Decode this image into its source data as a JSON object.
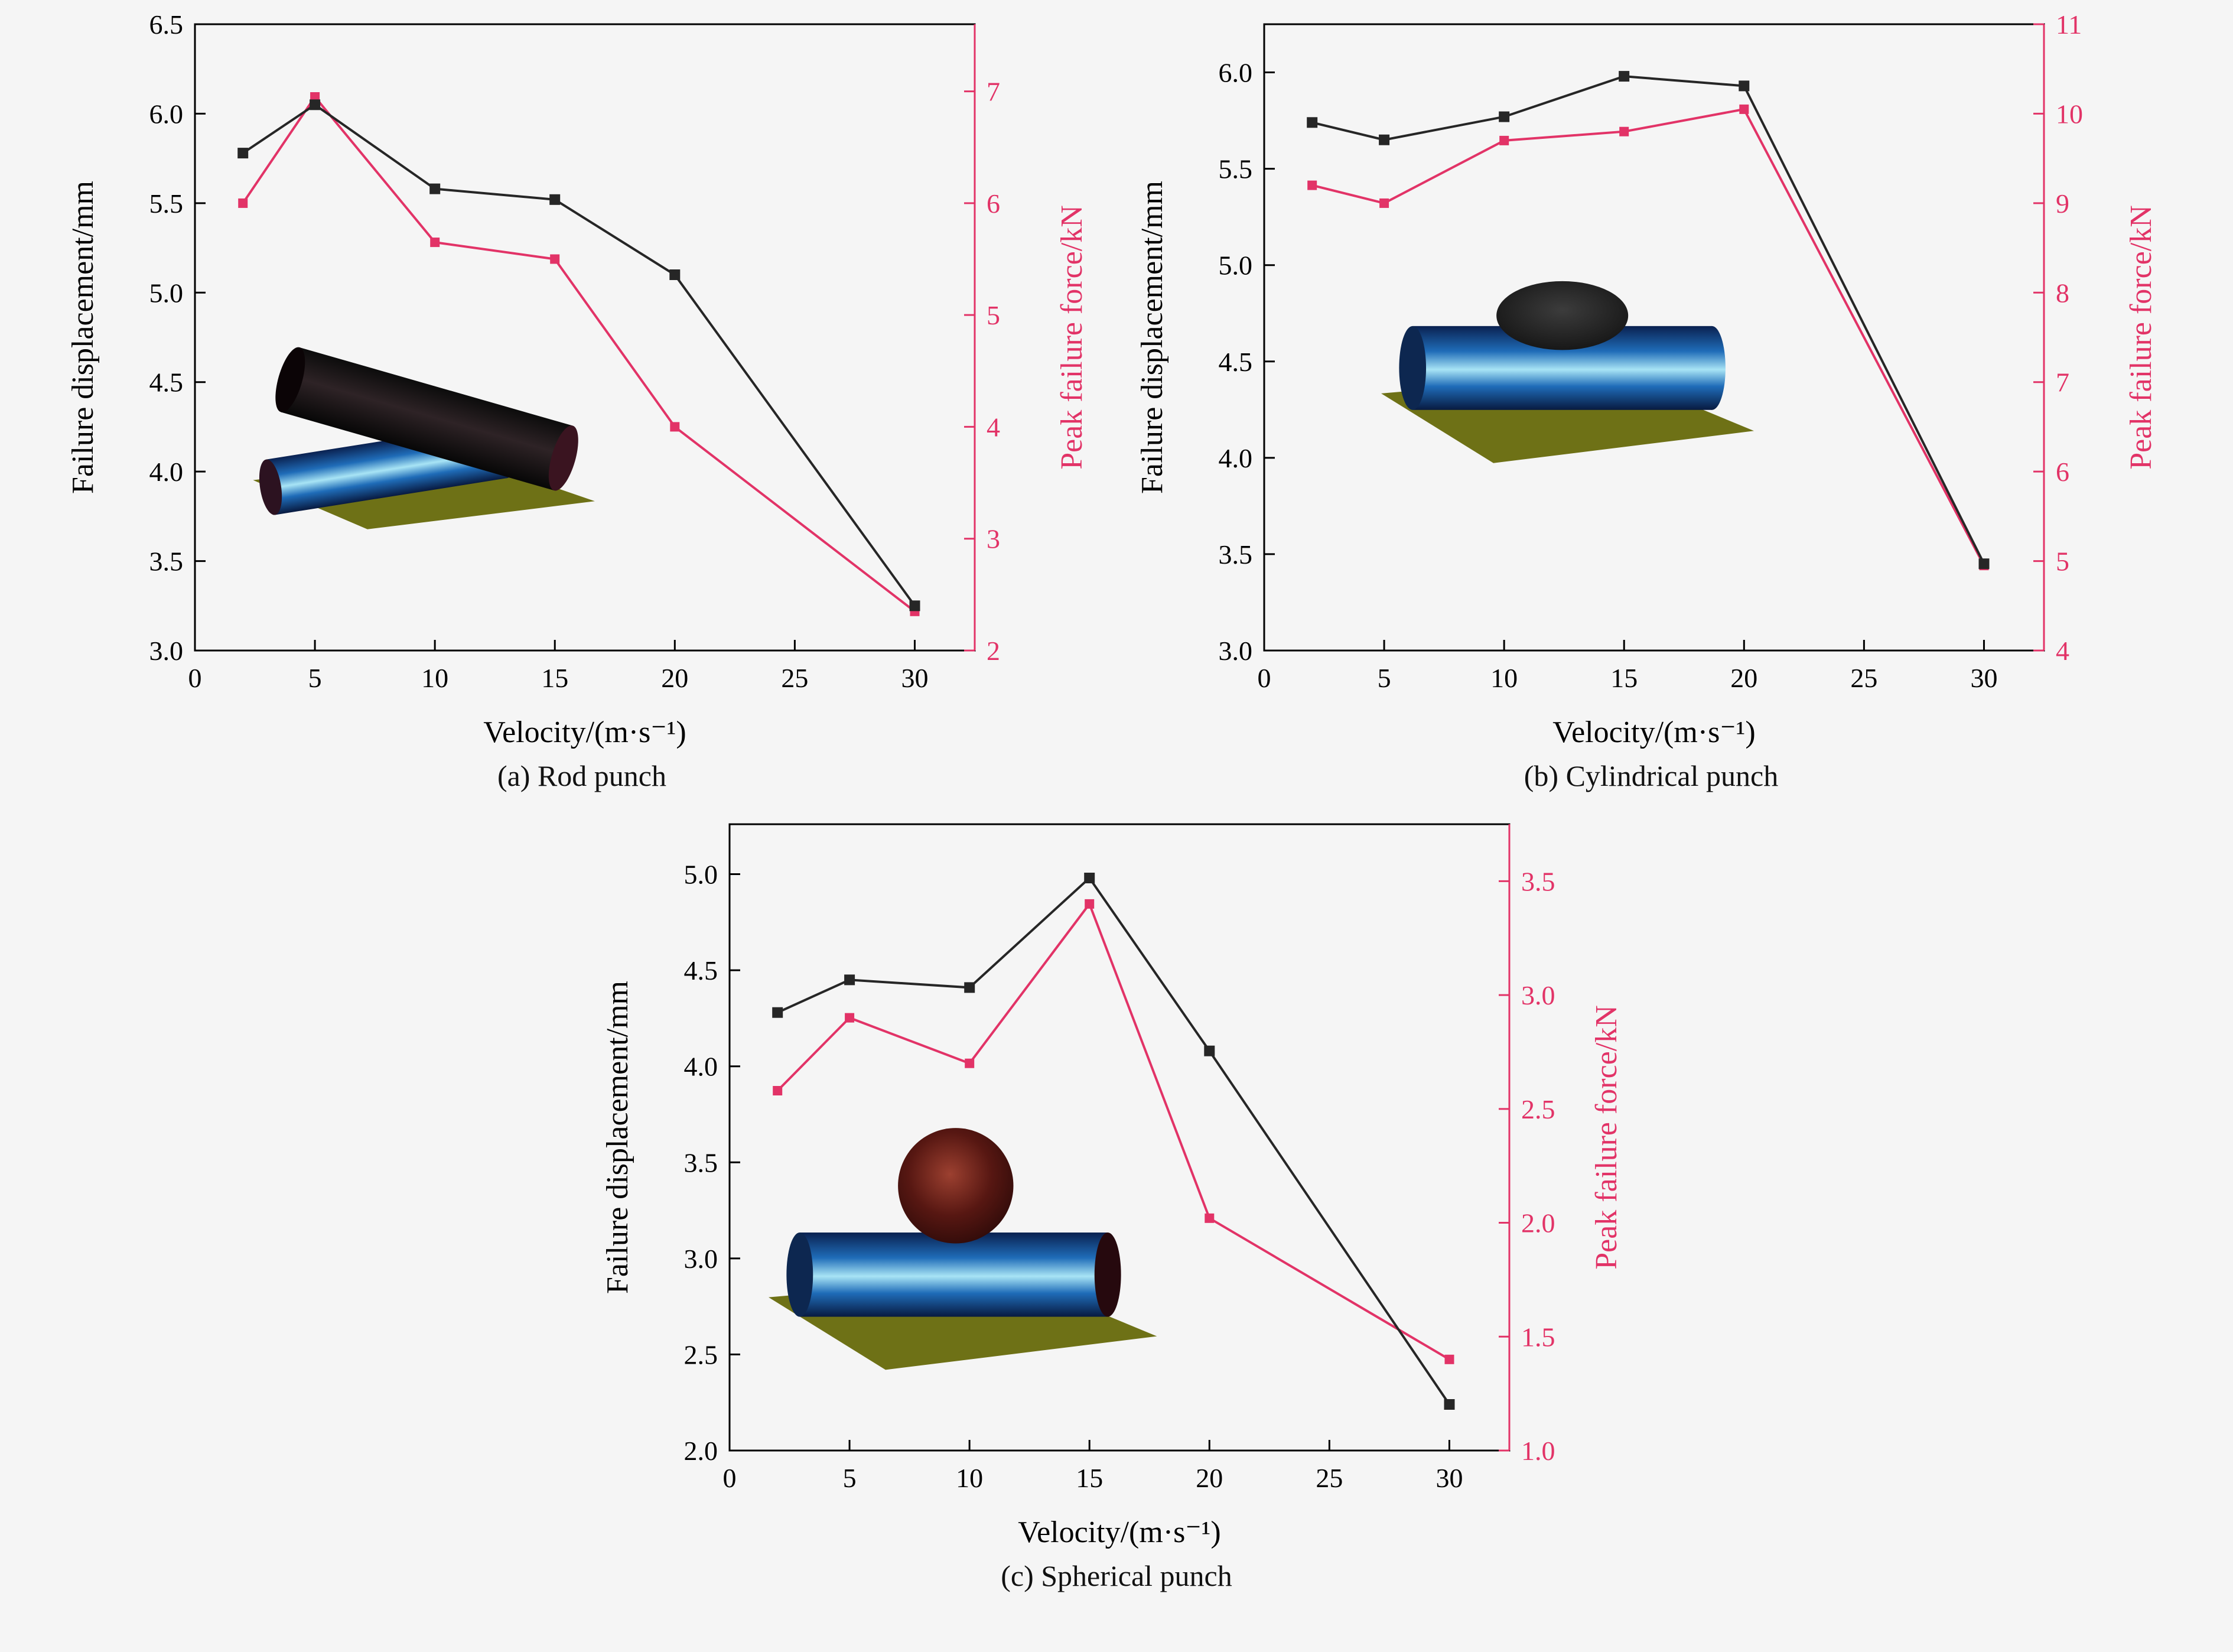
{
  "figure": {
    "background_color": "#f5f5f5",
    "caption_color": "#111111"
  },
  "colors": {
    "displacement_series": "#262626",
    "force_series": "#e23367",
    "axis": "#000000",
    "plate": "#6e7116"
  },
  "chart_data": [
    {
      "id": "a",
      "type": "line",
      "caption": "(a) Rod punch",
      "xlabel": "Velocity/(m·s⁻¹)",
      "xlim": [
        0,
        32.5
      ],
      "xticks": [
        "0",
        "5",
        "10",
        "15",
        "20",
        "25",
        "30"
      ],
      "x": [
        2,
        5,
        10,
        15,
        20,
        30
      ],
      "left_axis": {
        "label": "Failure displacement/mm",
        "lim": [
          3.0,
          6.5
        ],
        "ticks": [
          "3.0",
          "3.5",
          "4.0",
          "4.5",
          "5.0",
          "5.5",
          "6.0",
          "6.5"
        ],
        "values": [
          5.78,
          6.05,
          5.58,
          5.52,
          5.1,
          3.25
        ]
      },
      "right_axis": {
        "label": "Peak failure force/kN",
        "lim": [
          2,
          7.6
        ],
        "ticks": [
          "2",
          "3",
          "4",
          "5",
          "6",
          "7"
        ],
        "values": [
          6.0,
          6.95,
          5.65,
          5.5,
          4.0,
          2.35
        ]
      },
      "inset": {
        "type": "rod",
        "name": "rod-punch-illustration",
        "box": {
          "x": 0.07,
          "y": 0.45,
          "w": 0.45,
          "h": 0.45
        }
      }
    },
    {
      "id": "b",
      "type": "line",
      "caption": "(b) Cylindrical punch",
      "xlabel": "Velocity/(m·s⁻¹)",
      "xlim": [
        0,
        32.5
      ],
      "xticks": [
        "0",
        "5",
        "10",
        "15",
        "20",
        "25",
        "30"
      ],
      "x": [
        2,
        5,
        10,
        15,
        20,
        30
      ],
      "left_axis": {
        "label": "Failure displacement/mm",
        "lim": [
          3.0,
          6.25
        ],
        "ticks": [
          "3.0",
          "3.5",
          "4.0",
          "4.5",
          "5.0",
          "5.5",
          "6.0"
        ],
        "values": [
          5.74,
          5.65,
          5.77,
          5.98,
          5.93,
          3.45
        ]
      },
      "right_axis": {
        "label": "Peak failure force/kN",
        "lim": [
          4,
          11
        ],
        "ticks": [
          "4",
          "5",
          "6",
          "7",
          "8",
          "9",
          "10",
          "11"
        ],
        "values": [
          9.2,
          9.0,
          9.7,
          9.8,
          10.05,
          4.95
        ]
      },
      "inset": {
        "type": "cylinder",
        "name": "cylindrical-punch-illustration",
        "box": {
          "x": 0.15,
          "y": 0.36,
          "w": 0.48,
          "h": 0.4
        }
      }
    },
    {
      "id": "c",
      "type": "line",
      "caption": "(c) Spherical punch",
      "xlabel": "Velocity/(m·s⁻¹)",
      "xlim": [
        0,
        32.5
      ],
      "xticks": [
        "0",
        "5",
        "10",
        "15",
        "20",
        "25",
        "30"
      ],
      "x": [
        2,
        5,
        10,
        15,
        20,
        30
      ],
      "left_axis": {
        "label": "Failure displacement/mm",
        "lim": [
          2.0,
          5.26
        ],
        "ticks": [
          "2.0",
          "2.5",
          "3.0",
          "3.5",
          "4.0",
          "4.5",
          "5.0"
        ],
        "values": [
          4.28,
          4.45,
          4.41,
          4.98,
          4.08,
          2.24
        ]
      },
      "right_axis": {
        "label": "Peak failure force/kN",
        "lim": [
          1.0,
          3.75
        ],
        "ticks": [
          "1.0",
          "1.5",
          "2.0",
          "2.5",
          "3.0",
          "3.5"
        ],
        "values": [
          2.58,
          2.9,
          2.7,
          3.4,
          2.02,
          1.4
        ]
      },
      "inset": {
        "type": "sphere",
        "name": "spherical-punch-illustration",
        "box": {
          "x": 0.05,
          "y": 0.5,
          "w": 0.5,
          "h": 0.45
        }
      }
    }
  ]
}
